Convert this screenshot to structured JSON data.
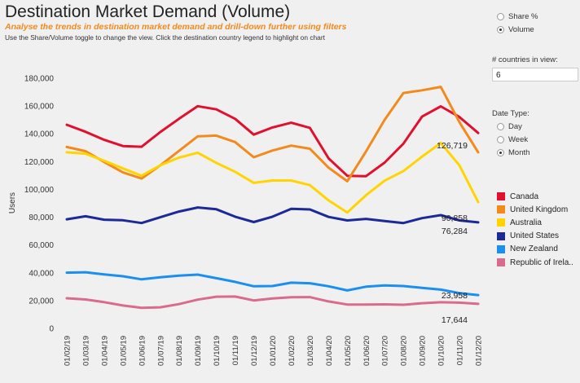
{
  "header": {
    "title": "Destination Market Demand (Volume)",
    "subtitle": "Analyse the trends in destination market demand and drill-down further using filters",
    "hint": "Use the Share/Volume toggle to change the view. Click the destination country legend to highlight on chart"
  },
  "view_toggle": {
    "options": [
      {
        "label": "Share %",
        "selected": false
      },
      {
        "label": "Volume",
        "selected": true
      }
    ]
  },
  "countries_in_view": {
    "label": "# countries in view:",
    "value": "6"
  },
  "date_type": {
    "label": "Date Type:",
    "options": [
      {
        "label": "Day",
        "selected": false
      },
      {
        "label": "Week",
        "selected": false
      },
      {
        "label": "Month",
        "selected": true
      }
    ]
  },
  "chart_data": {
    "type": "line",
    "ylabel": "Users",
    "xlabel": "",
    "ylim": [
      0,
      180000
    ],
    "yticks": [
      0,
      20000,
      40000,
      60000,
      80000,
      100000,
      120000,
      140000,
      160000,
      180000
    ],
    "ytick_labels": [
      "0",
      "20,000",
      "40,000",
      "60,000",
      "80,000",
      "100,000",
      "120,000",
      "140,000",
      "160,000",
      "180,000"
    ],
    "categories": [
      "01/02/19",
      "01/03/19",
      "01/04/19",
      "01/05/19",
      "01/06/19",
      "01/07/19",
      "01/08/19",
      "01/09/19",
      "01/10/19",
      "01/11/19",
      "01/12/19",
      "01/01/20",
      "01/02/20",
      "01/03/20",
      "01/04/20",
      "01/05/20",
      "01/06/20",
      "01/07/20",
      "01/08/20",
      "01/09/20",
      "01/10/20",
      "01/11/20",
      "01/12/20"
    ],
    "series": [
      {
        "name": "Canada",
        "color": "#e0102e",
        "end_label": "",
        "values": [
          146500,
          141500,
          135700,
          131200,
          130700,
          141300,
          150800,
          159900,
          157600,
          150800,
          139400,
          144600,
          148000,
          144300,
          122300,
          109800,
          109500,
          119300,
          132900,
          152400,
          159800,
          152100,
          140600
        ]
      },
      {
        "name": "United Kingdom",
        "color": "#f28a1c",
        "end_label": "126,719",
        "values": [
          130500,
          127500,
          119700,
          112200,
          107800,
          117300,
          127700,
          138200,
          138700,
          134100,
          123100,
          128000,
          131500,
          129300,
          115600,
          105900,
          127300,
          150100,
          169400,
          171300,
          173800,
          148400,
          126719
        ]
      },
      {
        "name": "Australia",
        "color": "#ffd400",
        "end_label": "90,858",
        "values": [
          126700,
          125700,
          120600,
          115100,
          109900,
          117300,
          122900,
          126400,
          119100,
          112700,
          104700,
          106400,
          106400,
          103100,
          92100,
          83400,
          95800,
          106300,
          113200,
          123600,
          133400,
          117300,
          90858
        ]
      },
      {
        "name": "United States",
        "color": "#1b2a96",
        "end_label": "76,284",
        "values": [
          78500,
          80700,
          78200,
          77800,
          75800,
          80000,
          84100,
          87000,
          85700,
          80400,
          76500,
          80400,
          86000,
          85600,
          80200,
          77700,
          78800,
          77300,
          75800,
          79300,
          81500,
          77700,
          76284
        ]
      },
      {
        "name": "New Zealand",
        "color": "#1a8fef",
        "end_label": "23,958",
        "values": [
          40100,
          40400,
          38800,
          37500,
          35300,
          36800,
          38000,
          38700,
          36100,
          33500,
          30300,
          30500,
          32900,
          32500,
          30300,
          27300,
          30000,
          30900,
          30500,
          29200,
          27900,
          25400,
          23958
        ]
      },
      {
        "name": "Republic of Irela..",
        "color": "#d96b8d",
        "end_label": "17,644",
        "values": [
          21700,
          20800,
          18900,
          16500,
          14800,
          15200,
          17500,
          20700,
          22800,
          22900,
          20100,
          21500,
          22400,
          22500,
          19400,
          17200,
          17200,
          17300,
          17000,
          18100,
          18800,
          18500,
          17644
        ]
      }
    ]
  }
}
